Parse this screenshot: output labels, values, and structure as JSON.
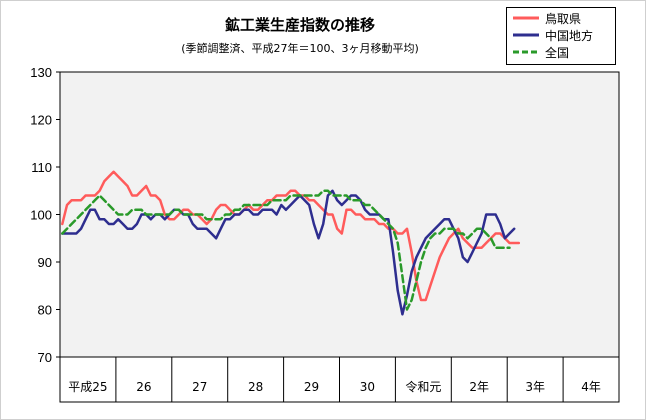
{
  "chart_data": {
    "type": "line",
    "title": "鉱工業生産指数の推移",
    "subtitle": "(季節調整済、平成27年＝100、3ヶ月移動平均)",
    "ylim": [
      70,
      130
    ],
    "yticks": [
      70,
      80,
      90,
      100,
      110,
      120,
      130
    ],
    "xlabels": [
      "平成25",
      "26",
      "27",
      "28",
      "29",
      "30",
      "令和元",
      "2年",
      "3年",
      "4年"
    ],
    "months_per_label": 12,
    "grid": false,
    "legend_position": "top-right",
    "series": [
      {
        "name": "鳥取県",
        "color": "#ff5b5b",
        "style": "solid",
        "values": [
          98,
          102,
          103,
          103,
          103,
          104,
          104,
          104,
          105,
          107,
          108,
          109,
          108,
          107,
          106,
          104,
          104,
          105,
          106,
          104,
          104,
          103,
          100,
          99,
          99,
          100,
          101,
          101,
          100,
          100,
          99,
          98,
          99,
          101,
          102,
          102,
          101,
          100,
          100,
          101,
          102,
          101,
          101,
          102,
          103,
          103,
          104,
          104,
          104,
          105,
          105,
          104,
          104,
          103,
          103,
          102,
          101,
          100,
          100,
          97,
          96,
          101,
          101,
          100,
          100,
          99,
          99,
          99,
          98,
          98,
          97,
          97,
          96,
          96,
          97,
          92,
          86,
          82,
          82,
          85,
          88,
          91,
          93,
          95,
          96,
          97,
          95,
          94,
          93,
          93,
          93,
          94,
          95,
          96,
          96,
          95,
          94,
          94,
          94
        ]
      },
      {
        "name": "中国地方",
        "color": "#2e2e8f",
        "style": "solid",
        "values": [
          96,
          96,
          96,
          96,
          97,
          99,
          101,
          101,
          99,
          99,
          98,
          98,
          99,
          98,
          97,
          97,
          98,
          100,
          100,
          99,
          100,
          100,
          99,
          100,
          101,
          101,
          100,
          100,
          98,
          97,
          97,
          97,
          96,
          95,
          97,
          99,
          99,
          100,
          100,
          101,
          101,
          100,
          100,
          101,
          101,
          101,
          100,
          102,
          101,
          102,
          103,
          104,
          103,
          102,
          98,
          95,
          98,
          104,
          105,
          103,
          102,
          103,
          104,
          104,
          103,
          101,
          100,
          100,
          100,
          99,
          99,
          92,
          84,
          79,
          83,
          88,
          91,
          93,
          95,
          96,
          97,
          98,
          99,
          99,
          97,
          95,
          91,
          90,
          92,
          94,
          96,
          100,
          100,
          100,
          98,
          95,
          96,
          97
        ]
      },
      {
        "name": "全国",
        "color": "#2a9a2a",
        "style": "dashed",
        "values": [
          96,
          97,
          98,
          99,
          100,
          101,
          102,
          103,
          104,
          103,
          102,
          101,
          100,
          100,
          100,
          101,
          101,
          101,
          100,
          100,
          100,
          100,
          100,
          100,
          101,
          101,
          100,
          100,
          100,
          100,
          100,
          99,
          99,
          99,
          99,
          100,
          100,
          101,
          101,
          102,
          102,
          102,
          102,
          102,
          102,
          103,
          103,
          103,
          103,
          104,
          104,
          104,
          104,
          104,
          104,
          104,
          105,
          105,
          104,
          104,
          104,
          104,
          103,
          103,
          103,
          102,
          102,
          101,
          100,
          99,
          98,
          97,
          94,
          87,
          80,
          82,
          86,
          90,
          93,
          95,
          96,
          96,
          97,
          97,
          97,
          96,
          96,
          95,
          96,
          97,
          97,
          96,
          95,
          93,
          93,
          93,
          93
        ]
      }
    ]
  }
}
